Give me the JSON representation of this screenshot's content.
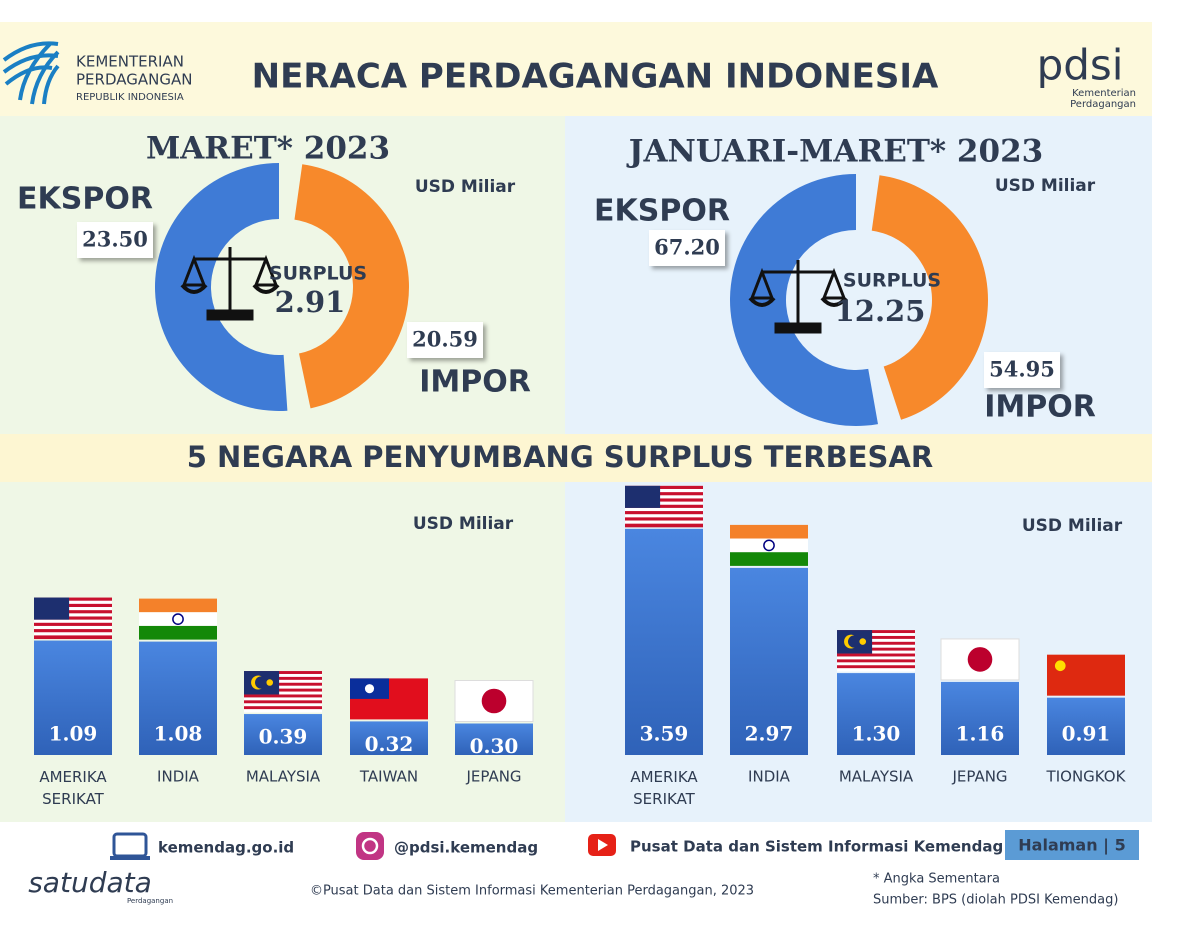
{
  "header": {
    "logo_lines": [
      "KEMENTERIAN",
      "PERDAGANGAN",
      "REPUBLIK INDONESIA"
    ],
    "title": "NERACA PERDAGANGAN INDONESIA",
    "pdsi": "pdsi",
    "pdsi_lines": [
      "Kementerian",
      "Perdagangan"
    ]
  },
  "section_title": "5 NEGARA PENYUMBANG SURPLUS TERBESAR",
  "chart_data": [
    {
      "type": "pie",
      "donut": true,
      "title": "MARET* 2023",
      "unit": "USD Miliar",
      "categories": [
        "EKSPOR",
        "IMPOR"
      ],
      "values": [
        23.5,
        20.59
      ],
      "value_labels": [
        "23.50",
        "20.59"
      ],
      "colors": [
        "#3f7bd6",
        "#f7892b"
      ],
      "center_label": "SURPLUS",
      "center_value": 2.91
    },
    {
      "type": "pie",
      "donut": true,
      "title": "JANUARI-MARET* 2023",
      "unit": "USD Miliar",
      "categories": [
        "EKSPOR",
        "IMPOR"
      ],
      "values": [
        67.2,
        54.95
      ],
      "value_labels": [
        "67.20",
        "54.95"
      ],
      "colors": [
        "#3f7bd6",
        "#f7892b"
      ],
      "center_label": "SURPLUS",
      "center_value": 12.25
    },
    {
      "type": "bar",
      "unit": "USD Miliar",
      "categories": [
        "AMERIKA SERIKAT",
        "INDIA",
        "MALAYSIA",
        "TAIWAN",
        "JEPANG"
      ],
      "values": [
        1.09,
        1.08,
        0.39,
        0.32,
        0.3
      ],
      "value_labels": [
        "1.09",
        "1.08",
        "0.39",
        "0.32",
        "0.30"
      ],
      "color": "#3d76d3"
    },
    {
      "type": "bar",
      "unit": "USD Miliar",
      "categories": [
        "AMERIKA SERIKAT",
        "INDIA",
        "MALAYSIA",
        "JEPANG",
        "TIONGKOK"
      ],
      "values": [
        3.59,
        2.97,
        1.3,
        1.16,
        0.91
      ],
      "value_labels": [
        "3.59",
        "2.97",
        "1.30",
        "1.16",
        "0.91"
      ],
      "color": "#3d76d3"
    }
  ],
  "footer": {
    "website": "kemendag.go.id",
    "instagram": "@pdsi.kemendag",
    "youtube": "Pusat Data dan Sistem Informasi Kemendag",
    "page": "Halaman | 5",
    "copyright": "©Pusat Data dan Sistem Informasi Kementerian Perdagangan, 2023",
    "note": "* Angka Sementara",
    "source": "Sumber: BPS (diolah PDSI Kemendag)",
    "brand": "satudata",
    "brand_sub": "Perdagangan"
  }
}
